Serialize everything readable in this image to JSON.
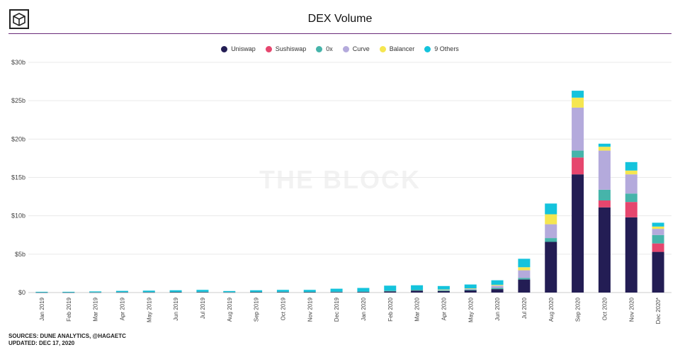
{
  "header": {
    "title": "DEX Volume",
    "watermark": "THE BLOCK"
  },
  "footer": {
    "sources": "SOURCES: DUNE ANALYTICS, @HAGAETC",
    "updated": "UPDATED: DEC 17, 2020"
  },
  "chart_data": {
    "type": "bar",
    "stacked": true,
    "title": "DEX Volume",
    "ylim": [
      0,
      30
    ],
    "yticks": [
      "$30b",
      "$25b",
      "$20b",
      "$15b",
      "$10b",
      "$5b",
      "$0"
    ],
    "grid": true,
    "legend_position": "top",
    "categories": [
      "Jan 2019",
      "Feb 2019",
      "Mar 2019",
      "Apr 2019",
      "May 2019",
      "Jun 2019",
      "Jul 2019",
      "Aug 2019",
      "Sep 2019",
      "Oct 2019",
      "Nov 2019",
      "Dec 2019",
      "Jan 2020",
      "Feb 2020",
      "Mar 2020",
      "Apr 2020",
      "May 2020",
      "Jun 2020",
      "Jul 2020",
      "Aug 2020",
      "Sep 2020",
      "Oct 2020",
      "Nov 2020",
      "Dec 2020*"
    ],
    "series": [
      {
        "name": "Uniswap",
        "color": "#231d54",
        "values": [
          0.02,
          0.02,
          0.03,
          0.04,
          0.04,
          0.05,
          0.06,
          0.04,
          0.05,
          0.06,
          0.05,
          0.07,
          0.08,
          0.15,
          0.25,
          0.2,
          0.3,
          0.45,
          1.7,
          6.6,
          15.4,
          11.1,
          9.8,
          5.3
        ]
      },
      {
        "name": "Sushiswap",
        "color": "#e6466e",
        "values": [
          0,
          0,
          0,
          0,
          0,
          0,
          0,
          0,
          0,
          0,
          0,
          0,
          0,
          0,
          0,
          0,
          0,
          0,
          0,
          0,
          2.2,
          0.9,
          2.0,
          1.1
        ]
      },
      {
        "name": "0x",
        "color": "#46b4aa",
        "values": [
          0.03,
          0.03,
          0.03,
          0.04,
          0.04,
          0.05,
          0.05,
          0.03,
          0.05,
          0.05,
          0.05,
          0.05,
          0.05,
          0.1,
          0.12,
          0.1,
          0.1,
          0.15,
          0.2,
          0.5,
          0.9,
          1.4,
          1.1,
          1.1
        ]
      },
      {
        "name": "Curve",
        "color": "#b4aadc",
        "values": [
          0,
          0,
          0,
          0,
          0,
          0,
          0,
          0,
          0,
          0,
          0,
          0,
          0,
          0,
          0,
          0.05,
          0.1,
          0.3,
          1.0,
          1.8,
          5.6,
          5.1,
          2.5,
          0.8
        ]
      },
      {
        "name": "Balancer",
        "color": "#f5e650",
        "values": [
          0,
          0,
          0,
          0,
          0,
          0,
          0,
          0,
          0,
          0,
          0,
          0,
          0,
          0,
          0,
          0.05,
          0.05,
          0.1,
          0.4,
          1.3,
          1.3,
          0.5,
          0.5,
          0.3
        ]
      },
      {
        "name": "9 Others",
        "color": "#14c3dc",
        "values": [
          0.05,
          0.05,
          0.09,
          0.14,
          0.17,
          0.2,
          0.24,
          0.13,
          0.2,
          0.24,
          0.25,
          0.38,
          0.47,
          0.65,
          0.58,
          0.45,
          0.5,
          0.6,
          1.1,
          1.4,
          0.9,
          0.4,
          1.1,
          0.5
        ]
      }
    ]
  }
}
